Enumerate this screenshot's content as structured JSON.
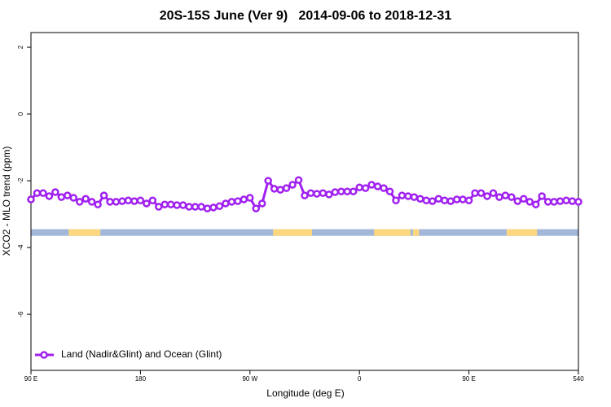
{
  "chart_data": {
    "type": "line",
    "title": "20S-15S June (Ver 9)   2014-09-06 to 2018-12-31",
    "xlabel": "Longitude (deg E)",
    "ylabel": "XCO2 - MLO trend (ppm)",
    "xlim": [
      90,
      540
    ],
    "xticks": [
      {
        "value": 90,
        "label": "90 E"
      },
      180,
      {
        "value": 270,
        "label": "90 W"
      },
      {
        "value": 360,
        "label": "0"
      },
      {
        "value": 450,
        "label": "90 E"
      },
      540
    ],
    "ylim": [
      -7.68,
      2.44
    ],
    "yticks": [
      2,
      0,
      -2,
      -4,
      -6
    ],
    "x": [
      90,
      95,
      100,
      105,
      110,
      115,
      120,
      125,
      130,
      135,
      140,
      145,
      150,
      155,
      160,
      165,
      170,
      175,
      180,
      185,
      190,
      195,
      200,
      205,
      210,
      215,
      220,
      225,
      230,
      235,
      240,
      245,
      250,
      255,
      260,
      265,
      270,
      275,
      280,
      285,
      290,
      295,
      300,
      305,
      310,
      315,
      320,
      325,
      330,
      335,
      340,
      345,
      350,
      355,
      360,
      365,
      370,
      375,
      380,
      385,
      390,
      395,
      400,
      405,
      410,
      415,
      420,
      425,
      430,
      435,
      440,
      445,
      450,
      455,
      460,
      465,
      470,
      475,
      480,
      485,
      490,
      495,
      500,
      505,
      510,
      515,
      520,
      525,
      530,
      535,
      540
    ],
    "series": [
      {
        "name": "Land (Nadir&Glint) and Ocean (Glint)",
        "color": "#a020f0",
        "values": [
          -2.56,
          -2.37,
          -2.37,
          -2.46,
          -2.34,
          -2.49,
          -2.44,
          -2.51,
          -2.63,
          -2.54,
          -2.63,
          -2.71,
          -2.44,
          -2.63,
          -2.63,
          -2.61,
          -2.59,
          -2.61,
          -2.59,
          -2.68,
          -2.59,
          -2.78,
          -2.71,
          -2.71,
          -2.73,
          -2.73,
          -2.78,
          -2.78,
          -2.78,
          -2.83,
          -2.8,
          -2.76,
          -2.68,
          -2.63,
          -2.61,
          -2.56,
          -2.51,
          -2.83,
          -2.68,
          -2.0,
          -2.24,
          -2.27,
          -2.22,
          -2.12,
          -1.98,
          -2.44,
          -2.37,
          -2.39,
          -2.37,
          -2.41,
          -2.34,
          -2.32,
          -2.32,
          -2.32,
          -2.2,
          -2.22,
          -2.12,
          -2.17,
          -2.22,
          -2.32,
          -2.59,
          -2.44,
          -2.46,
          -2.49,
          -2.54,
          -2.59,
          -2.61,
          -2.54,
          -2.59,
          -2.61,
          -2.56,
          -2.56,
          -2.59,
          -2.37,
          -2.37,
          -2.46,
          -2.37,
          -2.49,
          -2.44,
          -2.49,
          -2.61,
          -2.54,
          -2.63,
          -2.71,
          -2.46,
          -2.63,
          -2.63,
          -2.61,
          -2.59,
          -2.61,
          -2.63
        ]
      }
    ],
    "band": [
      -3.65,
      -3.45
    ],
    "ocean_color": "#a3b8d8",
    "land_color": "#fcd77f",
    "land_segments": [
      [
        121,
        147
      ],
      [
        289,
        321
      ],
      [
        372,
        402
      ],
      [
        404,
        409
      ],
      [
        481,
        506
      ]
    ],
    "legend": "lower left"
  }
}
